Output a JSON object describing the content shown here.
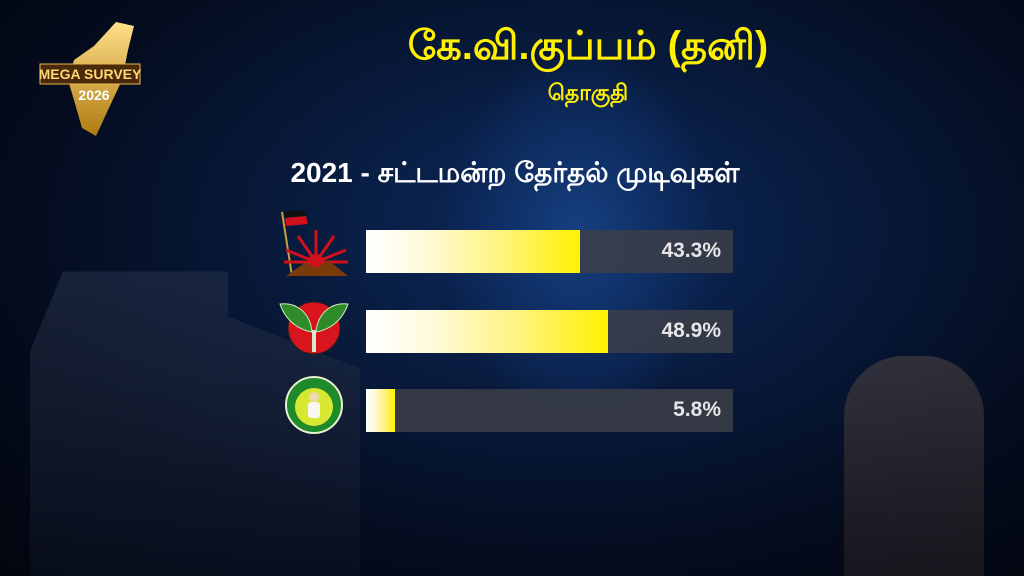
{
  "logo": {
    "text_line1": "MEGA SURVEY",
    "text_line2": "2026"
  },
  "header": {
    "title": "கே.வி.குப்பம் (தனி)",
    "subtitle": "தொகுதி"
  },
  "chart_data": {
    "type": "bar",
    "orientation": "horizontal",
    "title": "2021 - சட்டமன்ற தேர்தல் முடிவுகள்",
    "categories": [
      "dmk-rising-sun-icon",
      "aiadmk-two-leaves-icon",
      "ntk-farmer-icon"
    ],
    "values": [
      43.3,
      48.9,
      5.8
    ],
    "value_labels": [
      "43.3%",
      "48.9%",
      "5.8%"
    ],
    "xlabel": "",
    "ylabel": "",
    "grid": false,
    "colors": {
      "bar_start": "#ffffff",
      "bar_end": "#fff200",
      "track": "#3c3e48",
      "title": "#ffef00"
    }
  }
}
